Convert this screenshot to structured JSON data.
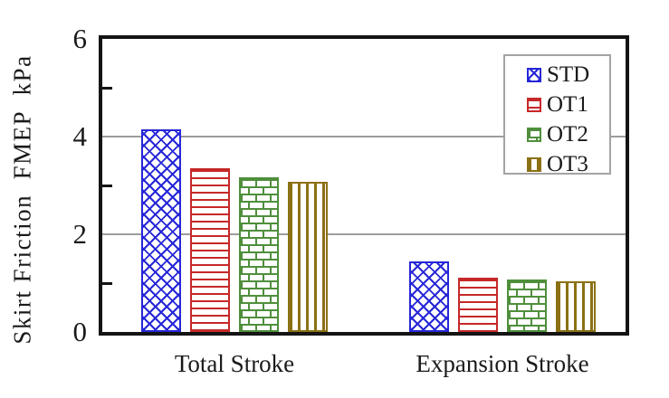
{
  "chart_data": {
    "type": "bar",
    "title": "",
    "ylabel": "Skirt Friction  FMEP  kPa",
    "xlabel": "",
    "categories": [
      "Total Stroke",
      "Expansion Stroke"
    ],
    "series": [
      {
        "name": "STD",
        "pattern": "crosshatch",
        "color": "#2626d8",
        "values": [
          4.15,
          1.45
        ]
      },
      {
        "name": "OT1",
        "pattern": "horizontal-stripes",
        "color": "#c62828",
        "values": [
          3.36,
          1.12
        ]
      },
      {
        "name": "OT2",
        "pattern": "brick",
        "color": "#4f8f3c",
        "values": [
          3.16,
          1.07
        ]
      },
      {
        "name": "OT3",
        "pattern": "vertical-stripes",
        "color": "#8b7114",
        "values": [
          3.08,
          1.03
        ]
      }
    ],
    "ylim": [
      0,
      6
    ],
    "yticks": [
      0,
      2,
      4,
      6
    ],
    "minor_yticks": [
      1,
      3,
      5
    ],
    "gridlines_at": [
      2,
      4
    ],
    "grid": true,
    "legend_position": "top-right",
    "legend_labels": [
      "STD",
      "OT1",
      "OT2",
      "OT3"
    ],
    "colors": {
      "axis": "#141414",
      "gridline": "#9c9c9c",
      "legend_border": "#a3a3a3",
      "background": "#ffffff"
    }
  }
}
